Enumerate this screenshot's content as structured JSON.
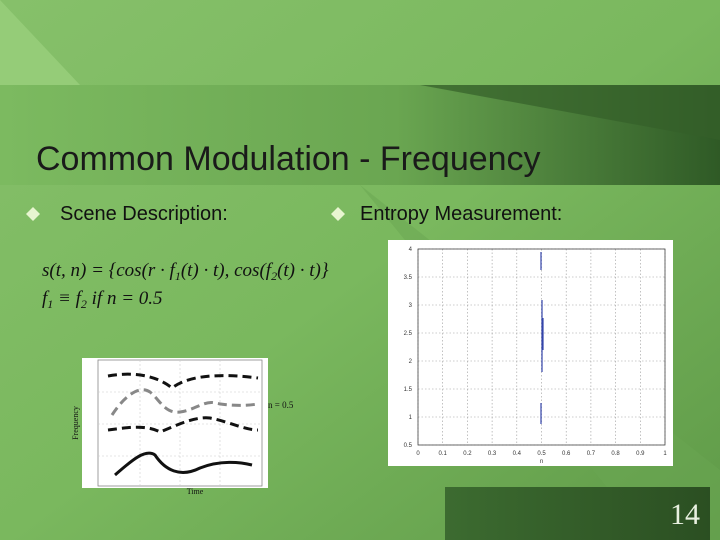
{
  "title": "Common Modulation - Frequency",
  "bullets": [
    "Scene Description:",
    "Entropy Measurement:"
  ],
  "formula": {
    "line1": [
      "s(t, n) = {cos(r · f",
      "1",
      "(t) · t), cos(f",
      "2",
      "(t) · t)}"
    ],
    "line2": [
      "f",
      "1",
      " ≡ f",
      "2",
      " if n = 0.5"
    ]
  },
  "sketch": {
    "y_label": "Frequency",
    "x_label": "Time",
    "annotation": "n = 0.5"
  },
  "entropy_plot": {
    "xlim": [
      0,
      1
    ],
    "xticks": [
      0,
      0.1,
      0.2,
      0.3,
      0.4,
      0.5,
      0.6,
      0.7,
      0.8,
      0.9,
      1
    ],
    "ylim": [
      0.5,
      4
    ],
    "yticks": [
      0.5,
      1,
      1.5,
      2,
      2.5,
      3,
      3.5,
      4
    ],
    "x_label": "n"
  },
  "slide_number": "14"
}
